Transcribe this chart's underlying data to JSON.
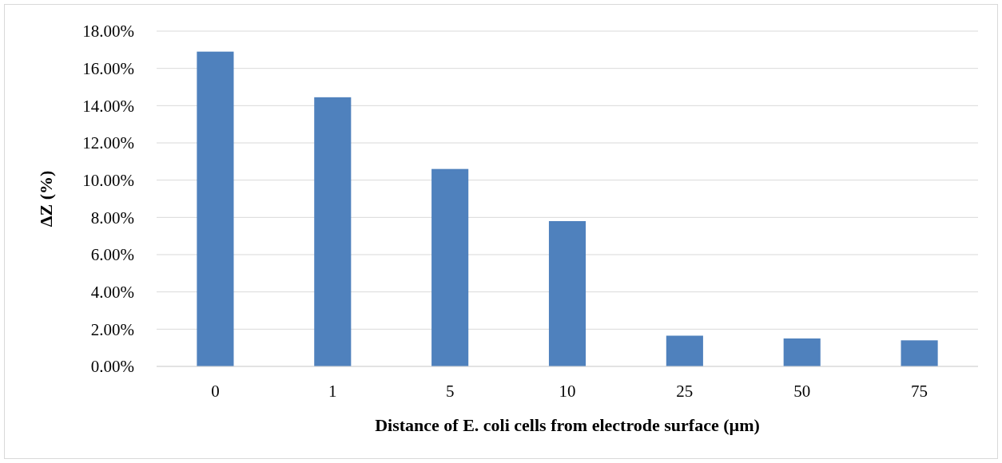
{
  "chart_data": {
    "type": "bar",
    "xlabel": "Distance of E. coli cells from electrode surface (µm)",
    "ylabel": "ΔZ (%)",
    "categories": [
      "0",
      "1",
      "5",
      "10",
      "25",
      "50",
      "75"
    ],
    "values": [
      16.9,
      14.45,
      10.6,
      7.8,
      1.65,
      1.5,
      1.4
    ],
    "color": "#4f81bd",
    "ylim": [
      0,
      18
    ],
    "yticks": [
      {
        "value": 0,
        "label": "0.00%"
      },
      {
        "value": 2,
        "label": "2.00%"
      },
      {
        "value": 4,
        "label": "4.00%"
      },
      {
        "value": 6,
        "label": "6.00%"
      },
      {
        "value": 8,
        "label": "8.00%"
      },
      {
        "value": 10,
        "label": "10.00%"
      },
      {
        "value": 12,
        "label": "12.00%"
      },
      {
        "value": 14,
        "label": "14.00%"
      },
      {
        "value": 16,
        "label": "16.00%"
      },
      {
        "value": 18,
        "label": "18.00%"
      }
    ],
    "grid": "y"
  }
}
